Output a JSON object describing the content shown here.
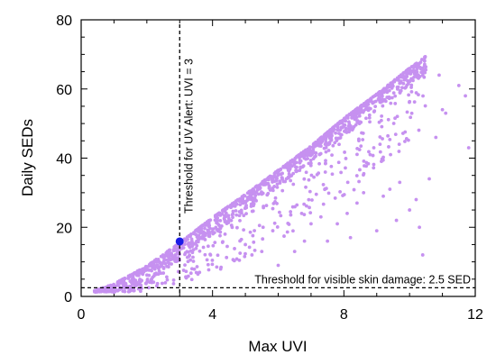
{
  "chart_data": {
    "type": "scatter",
    "xlabel": "Max UVI",
    "ylabel": "Daily SEDs",
    "xlim": [
      0,
      12
    ],
    "ylim": [
      0,
      80
    ],
    "xticks": [
      0,
      4,
      8,
      12
    ],
    "yticks": [
      0,
      20,
      40,
      60,
      80
    ],
    "grid": false,
    "colors": {
      "points": "#c691f0",
      "highlight": "#1a1ae6",
      "axes": "#000000"
    },
    "upper_envelope": [
      {
        "x": 0.4,
        "y": 1.6
      },
      {
        "x": 1.0,
        "y": 3.6
      },
      {
        "x": 2.0,
        "y": 8.8
      },
      {
        "x": 3.0,
        "y": 15.5
      },
      {
        "x": 4.0,
        "y": 22.8
      },
      {
        "x": 5.0,
        "y": 29.5
      },
      {
        "x": 6.0,
        "y": 36.5
      },
      {
        "x": 7.0,
        "y": 43.5
      },
      {
        "x": 8.0,
        "y": 51.5
      },
      {
        "x": 9.0,
        "y": 58.5
      },
      {
        "x": 10.0,
        "y": 66.0
      },
      {
        "x": 10.5,
        "y": 69.5
      }
    ],
    "series": [
      {
        "points": [
          [
            11.5,
            61
          ],
          [
            11.7,
            58
          ],
          [
            11.8,
            43
          ],
          [
            10.9,
            64
          ],
          [
            11.0,
            54
          ],
          [
            11.1,
            53
          ],
          [
            10.3,
            20
          ],
          [
            10.4,
            12
          ],
          [
            10.0,
            25
          ],
          [
            9.7,
            33
          ],
          [
            9.4,
            31
          ],
          [
            9.1,
            44
          ],
          [
            9.2,
            29
          ],
          [
            8.8,
            41
          ],
          [
            8.6,
            30
          ],
          [
            8.4,
            27
          ],
          [
            8.1,
            24
          ],
          [
            7.8,
            21
          ],
          [
            7.3,
            23
          ],
          [
            7.0,
            21
          ],
          [
            6.5,
            13
          ],
          [
            6.0,
            9
          ],
          [
            5.5,
            13
          ],
          [
            5.2,
            12
          ],
          [
            5.0,
            15
          ],
          [
            6.8,
            16
          ],
          [
            7.5,
            16
          ],
          [
            8.2,
            17
          ],
          [
            9.0,
            19
          ],
          [
            9.6,
            22
          ],
          [
            10.2,
            28
          ],
          [
            10.6,
            34
          ],
          [
            10.8,
            46
          ]
        ]
      },
      {
        "points": [
          [
            3.0,
            15.9
          ]
        ]
      }
    ],
    "annotations": [
      {
        "text": "Threshold for UV Alert: UVI = 3",
        "x": 3,
        "orientation": "vertical"
      },
      {
        "text": "Threshold for visible skin damage: 2.5 SED",
        "y": 2.5,
        "orientation": "horizontal"
      }
    ]
  }
}
